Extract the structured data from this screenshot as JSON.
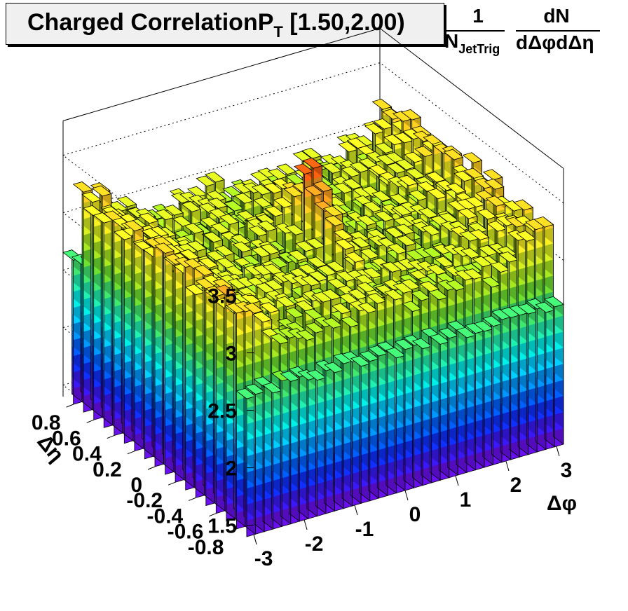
{
  "title": {
    "main": "Charged CorrelationP",
    "sub": "T",
    "range": " [1.50,2.00)"
  },
  "z_axis_label": {
    "frac1_num": "1",
    "frac1_den": "N",
    "frac1_den_sub": "JetTrig",
    "frac2_num": "dN",
    "frac2_den": "dΔφdΔη"
  },
  "x_axis_label": "Δφ",
  "y_axis_label": "Δη",
  "colors": {
    "palette": [
      "#6a10f0",
      "#3a18f8",
      "#1030ff",
      "#0060ff",
      "#0098ff",
      "#00d0ff",
      "#00f0e8",
      "#20f0b0",
      "#40e870",
      "#70e030",
      "#a8e820",
      "#d8f020",
      "#f8f020",
      "#ffd020",
      "#ffa020",
      "#ff6010",
      "#ff2000"
    ],
    "peak": "#ff2000"
  },
  "chart_data": {
    "type": "lego",
    "title": "Charged CorrelationP_T [1.50,2.00)",
    "xlabel": "Δφ",
    "ylabel": "Δη",
    "zlabel": "1/N_JetTrig dN/dΔφdΔη",
    "xlim": [
      -3.14,
      3.14
    ],
    "ylim": [
      -0.9,
      0.9
    ],
    "zlim": [
      1.4,
      3.8
    ],
    "x_ticks": [
      "-3",
      "-2",
      "-1",
      "0",
      "1",
      "2",
      "3"
    ],
    "y_ticks": [
      "-0.8",
      "-0.6",
      "-0.4",
      "-0.2",
      "0",
      "0.2",
      "0.4",
      "0.6",
      "0.8"
    ],
    "z_ticks": [
      "1.5",
      "2",
      "2.5",
      "3",
      "3.5"
    ],
    "nx": 36,
    "ny": 18,
    "baseline": 2.95,
    "edge_value": 2.62,
    "near_side_peak": {
      "x": 0.0,
      "y": 0.0,
      "value": 3.7
    },
    "away_side_ridge": {
      "x": 3.14,
      "value": 3.25
    },
    "noise_amplitude": 0.12
  }
}
